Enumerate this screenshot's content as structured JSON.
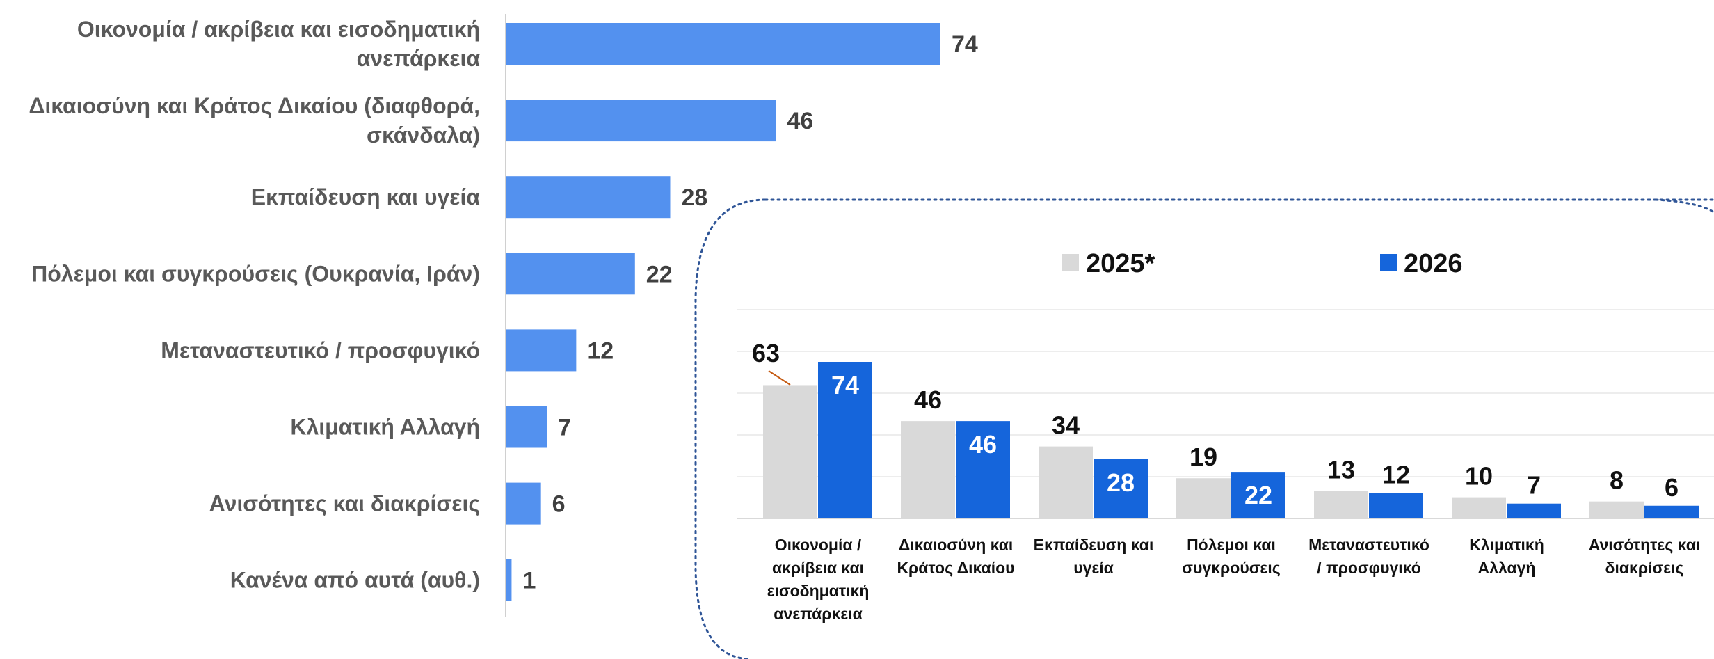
{
  "chart_data": [
    {
      "type": "bar",
      "orientation": "horizontal",
      "categories": [
        [
          "Οικονομία / ακρίβεια και εισοδηματική",
          "ανεπάρκεια"
        ],
        [
          "Δικαιοσύνη και Κράτος Δικαίου (διαφθορά,",
          "σκάνδαλα)"
        ],
        [
          "Εκπαίδευση και υγεία"
        ],
        [
          "Πόλεμοι και συγκρούσεις (Ουκρανία, Ιράν)"
        ],
        [
          "Μεταναστευτικό / προσφυγικό"
        ],
        [
          "Κλιματική Αλλαγή"
        ],
        [
          "Ανισότητες και διακρίσεις"
        ],
        [
          "Κανένα από αυτά (αυθ.)"
        ]
      ],
      "values": [
        74,
        46,
        28,
        22,
        12,
        7,
        6,
        1
      ],
      "xlim": [
        0,
        80
      ],
      "bar_color": "#5391EF",
      "label_color": "#595959"
    },
    {
      "type": "bar",
      "orientation": "vertical",
      "categories": [
        [
          "Οικονομία /",
          "ακρίβεια και",
          "εισοδηματική",
          "ανεπάρκεια"
        ],
        [
          "Δικαιοσύνη και",
          "Κράτος Δικαίου"
        ],
        [
          "Εκπαίδευση και",
          "υγεία"
        ],
        [
          "Πόλεμοι και",
          "συγκρούσεις"
        ],
        [
          "Μεταναστευτικό",
          "/ προσφυγικό"
        ],
        [
          "Κλιματική",
          "Αλλαγή"
        ],
        [
          "Ανισότητες και",
          "διακρίσεις"
        ]
      ],
      "series": [
        {
          "name": "2025*",
          "values": [
            63,
            46,
            34,
            19,
            13,
            10,
            8
          ],
          "color": "#D9D9D9"
        },
        {
          "name": "2026",
          "values": [
            74,
            46,
            28,
            22,
            12,
            7,
            6
          ],
          "color": "#1565DB"
        }
      ],
      "ylim": [
        0,
        100
      ],
      "grid": true,
      "legend_position": "top"
    }
  ]
}
